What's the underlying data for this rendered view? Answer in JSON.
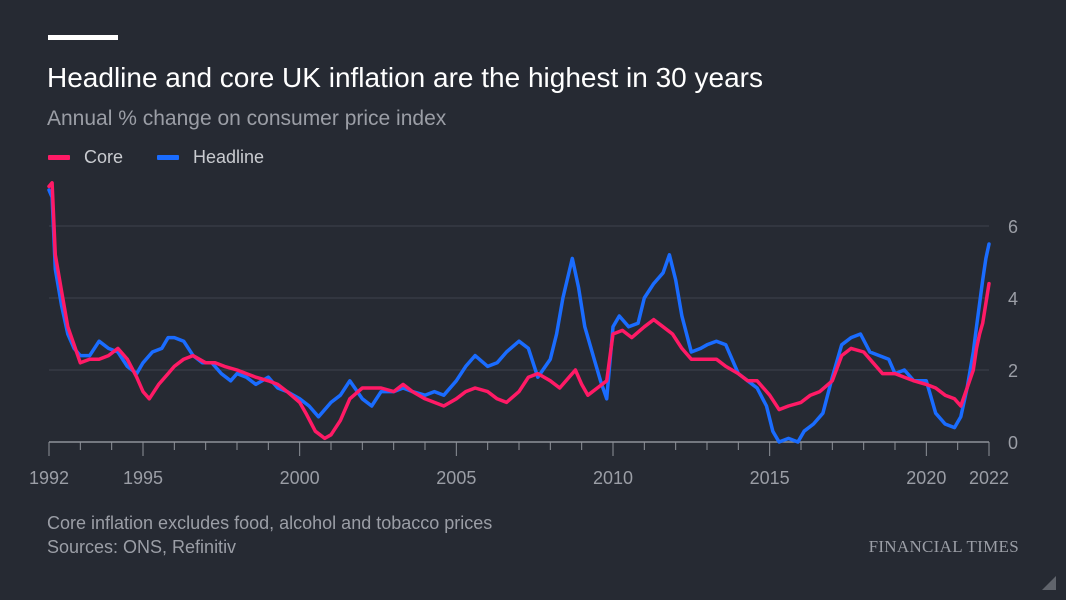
{
  "title": "Headline and core UK inflation are the highest in 30 years",
  "subtitle": "Annual % change on consumer price index",
  "footnote": "Core inflation excludes food, alcohol and tobacco prices",
  "sources": "Sources: ONS, Refinitiv",
  "brand": "FINANCIAL TIMES",
  "chart_data": {
    "type": "line",
    "title": "Headline and core UK inflation are the highest in 30 years",
    "subtitle": "Annual % change on consumer price index",
    "ylabel": "",
    "xlabel": "",
    "xlim": [
      1992.0,
      2022.0
    ],
    "ylim": [
      0,
      7
    ],
    "yticks": [
      0,
      2,
      4,
      6
    ],
    "xticks": [
      1992,
      1995,
      2000,
      2005,
      2010,
      2015,
      2020,
      2022
    ],
    "grid": true,
    "y_axis_side": "right",
    "legend_position": "top-left",
    "series": [
      {
        "name": "Core",
        "color": "#ff1a66",
        "points": [
          [
            1992.0,
            7.1
          ],
          [
            1992.1,
            7.2
          ],
          [
            1992.2,
            5.2
          ],
          [
            1992.4,
            4.2
          ],
          [
            1992.6,
            3.2
          ],
          [
            1992.8,
            2.7
          ],
          [
            1993.0,
            2.2
          ],
          [
            1993.3,
            2.3
          ],
          [
            1993.6,
            2.3
          ],
          [
            1993.9,
            2.4
          ],
          [
            1994.2,
            2.6
          ],
          [
            1994.5,
            2.3
          ],
          [
            1994.8,
            1.8
          ],
          [
            1995.0,
            1.4
          ],
          [
            1995.2,
            1.2
          ],
          [
            1995.5,
            1.6
          ],
          [
            1995.8,
            1.9
          ],
          [
            1996.0,
            2.1
          ],
          [
            1996.3,
            2.3
          ],
          [
            1996.6,
            2.4
          ],
          [
            1997.0,
            2.2
          ],
          [
            1997.3,
            2.2
          ],
          [
            1997.6,
            2.1
          ],
          [
            1998.0,
            2.0
          ],
          [
            1998.3,
            1.9
          ],
          [
            1998.6,
            1.8
          ],
          [
            1999.0,
            1.7
          ],
          [
            1999.3,
            1.6
          ],
          [
            1999.6,
            1.4
          ],
          [
            2000.0,
            1.1
          ],
          [
            2000.2,
            0.8
          ],
          [
            2000.5,
            0.3
          ],
          [
            2000.8,
            0.1
          ],
          [
            2001.0,
            0.2
          ],
          [
            2001.3,
            0.6
          ],
          [
            2001.6,
            1.2
          ],
          [
            2002.0,
            1.5
          ],
          [
            2002.3,
            1.5
          ],
          [
            2002.6,
            1.5
          ],
          [
            2003.0,
            1.4
          ],
          [
            2003.3,
            1.6
          ],
          [
            2003.6,
            1.4
          ],
          [
            2004.0,
            1.2
          ],
          [
            2004.3,
            1.1
          ],
          [
            2004.6,
            1.0
          ],
          [
            2005.0,
            1.2
          ],
          [
            2005.3,
            1.4
          ],
          [
            2005.6,
            1.5
          ],
          [
            2006.0,
            1.4
          ],
          [
            2006.3,
            1.2
          ],
          [
            2006.6,
            1.1
          ],
          [
            2007.0,
            1.4
          ],
          [
            2007.3,
            1.8
          ],
          [
            2007.6,
            1.9
          ],
          [
            2008.0,
            1.7
          ],
          [
            2008.3,
            1.5
          ],
          [
            2008.6,
            1.8
          ],
          [
            2008.8,
            2.0
          ],
          [
            2009.0,
            1.6
          ],
          [
            2009.2,
            1.3
          ],
          [
            2009.5,
            1.5
          ],
          [
            2009.8,
            1.7
          ],
          [
            2010.0,
            3.0
          ],
          [
            2010.3,
            3.1
          ],
          [
            2010.6,
            2.9
          ],
          [
            2011.0,
            3.2
          ],
          [
            2011.3,
            3.4
          ],
          [
            2011.6,
            3.2
          ],
          [
            2011.9,
            3.0
          ],
          [
            2012.2,
            2.6
          ],
          [
            2012.5,
            2.3
          ],
          [
            2012.8,
            2.3
          ],
          [
            2013.0,
            2.3
          ],
          [
            2013.3,
            2.3
          ],
          [
            2013.6,
            2.1
          ],
          [
            2014.0,
            1.9
          ],
          [
            2014.3,
            1.7
          ],
          [
            2014.6,
            1.7
          ],
          [
            2015.0,
            1.3
          ],
          [
            2015.3,
            0.9
          ],
          [
            2015.6,
            1.0
          ],
          [
            2016.0,
            1.1
          ],
          [
            2016.3,
            1.3
          ],
          [
            2016.6,
            1.4
          ],
          [
            2017.0,
            1.7
          ],
          [
            2017.3,
            2.4
          ],
          [
            2017.6,
            2.6
          ],
          [
            2018.0,
            2.5
          ],
          [
            2018.3,
            2.2
          ],
          [
            2018.6,
            1.9
          ],
          [
            2019.0,
            1.9
          ],
          [
            2019.3,
            1.8
          ],
          [
            2019.6,
            1.7
          ],
          [
            2020.0,
            1.6
          ],
          [
            2020.3,
            1.5
          ],
          [
            2020.6,
            1.3
          ],
          [
            2020.9,
            1.2
          ],
          [
            2021.1,
            1.0
          ],
          [
            2021.3,
            1.5
          ],
          [
            2021.5,
            2.0
          ],
          [
            2021.6,
            2.6
          ],
          [
            2021.7,
            3.0
          ],
          [
            2021.8,
            3.3
          ],
          [
            2022.0,
            4.4
          ]
        ]
      },
      {
        "name": "Headline",
        "color": "#1a6cff",
        "points": [
          [
            1992.0,
            7.0
          ],
          [
            1992.1,
            6.8
          ],
          [
            1992.2,
            4.8
          ],
          [
            1992.4,
            3.8
          ],
          [
            1992.6,
            3.0
          ],
          [
            1992.8,
            2.6
          ],
          [
            1993.0,
            2.4
          ],
          [
            1993.3,
            2.4
          ],
          [
            1993.6,
            2.8
          ],
          [
            1993.9,
            2.6
          ],
          [
            1994.2,
            2.5
          ],
          [
            1994.5,
            2.1
          ],
          [
            1994.8,
            1.9
          ],
          [
            1995.0,
            2.2
          ],
          [
            1995.3,
            2.5
          ],
          [
            1995.6,
            2.6
          ],
          [
            1995.8,
            2.9
          ],
          [
            1996.0,
            2.9
          ],
          [
            1996.3,
            2.8
          ],
          [
            1996.6,
            2.4
          ],
          [
            1996.9,
            2.2
          ],
          [
            1997.2,
            2.2
          ],
          [
            1997.5,
            1.9
          ],
          [
            1997.8,
            1.7
          ],
          [
            1998.0,
            1.9
          ],
          [
            1998.3,
            1.8
          ],
          [
            1998.6,
            1.6
          ],
          [
            1999.0,
            1.8
          ],
          [
            1999.3,
            1.5
          ],
          [
            1999.6,
            1.4
          ],
          [
            2000.0,
            1.2
          ],
          [
            2000.3,
            1.0
          ],
          [
            2000.6,
            0.7
          ],
          [
            2001.0,
            1.1
          ],
          [
            2001.3,
            1.3
          ],
          [
            2001.6,
            1.7
          ],
          [
            2002.0,
            1.2
          ],
          [
            2002.3,
            1.0
          ],
          [
            2002.6,
            1.4
          ],
          [
            2003.0,
            1.4
          ],
          [
            2003.3,
            1.5
          ],
          [
            2003.6,
            1.4
          ],
          [
            2004.0,
            1.3
          ],
          [
            2004.3,
            1.4
          ],
          [
            2004.6,
            1.3
          ],
          [
            2005.0,
            1.7
          ],
          [
            2005.3,
            2.1
          ],
          [
            2005.6,
            2.4
          ],
          [
            2006.0,
            2.1
          ],
          [
            2006.3,
            2.2
          ],
          [
            2006.6,
            2.5
          ],
          [
            2007.0,
            2.8
          ],
          [
            2007.3,
            2.6
          ],
          [
            2007.6,
            1.8
          ],
          [
            2008.0,
            2.3
          ],
          [
            2008.2,
            3.0
          ],
          [
            2008.4,
            4.0
          ],
          [
            2008.7,
            5.1
          ],
          [
            2008.9,
            4.3
          ],
          [
            2009.1,
            3.2
          ],
          [
            2009.4,
            2.3
          ],
          [
            2009.6,
            1.7
          ],
          [
            2009.8,
            1.2
          ],
          [
            2010.0,
            3.2
          ],
          [
            2010.2,
            3.5
          ],
          [
            2010.5,
            3.2
          ],
          [
            2010.8,
            3.3
          ],
          [
            2011.0,
            4.0
          ],
          [
            2011.3,
            4.4
          ],
          [
            2011.6,
            4.7
          ],
          [
            2011.8,
            5.2
          ],
          [
            2012.0,
            4.5
          ],
          [
            2012.2,
            3.5
          ],
          [
            2012.5,
            2.5
          ],
          [
            2012.8,
            2.6
          ],
          [
            2013.0,
            2.7
          ],
          [
            2013.3,
            2.8
          ],
          [
            2013.6,
            2.7
          ],
          [
            2014.0,
            1.9
          ],
          [
            2014.3,
            1.7
          ],
          [
            2014.6,
            1.5
          ],
          [
            2014.9,
            1.0
          ],
          [
            2015.1,
            0.3
          ],
          [
            2015.3,
            0.0
          ],
          [
            2015.6,
            0.1
          ],
          [
            2015.9,
            0.0
          ],
          [
            2016.1,
            0.3
          ],
          [
            2016.4,
            0.5
          ],
          [
            2016.7,
            0.8
          ],
          [
            2017.0,
            1.8
          ],
          [
            2017.3,
            2.7
          ],
          [
            2017.6,
            2.9
          ],
          [
            2017.9,
            3.0
          ],
          [
            2018.2,
            2.5
          ],
          [
            2018.5,
            2.4
          ],
          [
            2018.8,
            2.3
          ],
          [
            2019.0,
            1.9
          ],
          [
            2019.3,
            2.0
          ],
          [
            2019.6,
            1.7
          ],
          [
            2020.0,
            1.7
          ],
          [
            2020.3,
            0.8
          ],
          [
            2020.6,
            0.5
          ],
          [
            2020.9,
            0.4
          ],
          [
            2021.1,
            0.7
          ],
          [
            2021.3,
            1.5
          ],
          [
            2021.5,
            2.5
          ],
          [
            2021.6,
            3.2
          ],
          [
            2021.8,
            4.5
          ],
          [
            2021.9,
            5.1
          ],
          [
            2022.0,
            5.5
          ]
        ]
      }
    ]
  }
}
